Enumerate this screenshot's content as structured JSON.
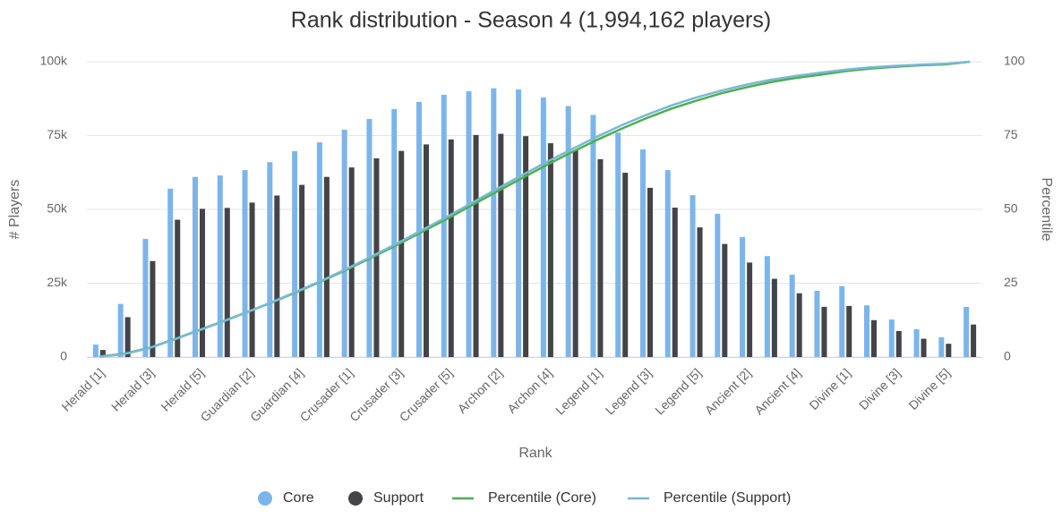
{
  "chart_data": {
    "type": "bar",
    "title": "Rank distribution - Season 4 (1,994,162 players)",
    "x_label": "Rank",
    "y_label": "# Players",
    "y2_label": "Percentile",
    "categories": [
      "Herald [1]",
      null,
      "Herald [3]",
      null,
      "Herald [5]",
      null,
      "Guardian [2]",
      null,
      "Guardian [4]",
      null,
      "Crusader [1]",
      null,
      "Crusader [3]",
      null,
      "Crusader [5]",
      null,
      "Archon [2]",
      null,
      "Archon [4]",
      null,
      "Legend [1]",
      null,
      "Legend [3]",
      null,
      "Legend [5]",
      null,
      "Ancient [2]",
      null,
      "Ancient [4]",
      null,
      "Divine [1]",
      null,
      "Divine [3]",
      null,
      "Divine [5]",
      null
    ],
    "series": [
      {
        "name": "Core",
        "type": "bar",
        "color": "#7cb5ec",
        "values": [
          4200,
          18000,
          40000,
          57000,
          61000,
          61500,
          63300,
          66000,
          69700,
          72700,
          77000,
          80600,
          84000,
          86400,
          88800,
          90000,
          91000,
          90600,
          87900,
          85000,
          82000,
          76000,
          70300,
          63300,
          54800,
          48500,
          40600,
          34200,
          27900,
          22400,
          24000,
          17500,
          12700,
          9400,
          6700,
          17000
        ]
      },
      {
        "name": "Support",
        "type": "bar",
        "color": "#434348",
        "values": [
          2400,
          13500,
          32500,
          46500,
          50200,
          50500,
          52300,
          54700,
          58300,
          61000,
          64200,
          67300,
          69800,
          72000,
          73700,
          75200,
          75600,
          74800,
          72400,
          70000,
          67000,
          62400,
          57300,
          50600,
          43900,
          38300,
          32000,
          26500,
          21600,
          17000,
          17300,
          12500,
          8800,
          6200,
          4500,
          11000
        ]
      },
      {
        "name": "Percentile (Core)",
        "type": "line",
        "axis": "y2",
        "color": "#4caf50",
        "values": [
          0.2,
          1.1,
          3.1,
          6.0,
          9.1,
          12.2,
          15.4,
          18.7,
          22.2,
          25.9,
          29.8,
          33.9,
          38.1,
          42.5,
          46.9,
          51.5,
          56.1,
          60.6,
          65.1,
          69.4,
          73.5,
          77.3,
          80.9,
          84.1,
          86.8,
          89.3,
          91.3,
          93.1,
          94.5,
          95.6,
          96.8,
          97.7,
          98.3,
          98.8,
          99.1,
          100
        ]
      },
      {
        "name": "Percentile (Support)",
        "type": "line",
        "axis": "y2",
        "color": "#7ab8d6",
        "values": [
          0.1,
          1.0,
          3.0,
          5.9,
          9.0,
          12.1,
          15.4,
          18.8,
          22.4,
          26.1,
          30.1,
          34.3,
          38.6,
          43.1,
          47.6,
          52.3,
          57.0,
          61.6,
          66.1,
          70.4,
          74.6,
          78.5,
          82.0,
          85.2,
          87.9,
          90.2,
          92.2,
          93.9,
          95.2,
          96.3,
          97.3,
          98.1,
          98.6,
          99.0,
          99.3,
          100
        ]
      }
    ],
    "ylim": [
      0,
      100000
    ],
    "yticks": [
      0,
      {
        "value": 25000,
        "label": "25k"
      },
      {
        "value": 50000,
        "label": "50k"
      },
      {
        "value": 75000,
        "label": "75k"
      },
      {
        "value": 100000,
        "label": "100k"
      }
    ],
    "y2lim": [
      0,
      100
    ],
    "y2ticks": [
      0,
      25,
      50,
      75,
      100
    ],
    "grid": true,
    "legend": "bottom"
  }
}
